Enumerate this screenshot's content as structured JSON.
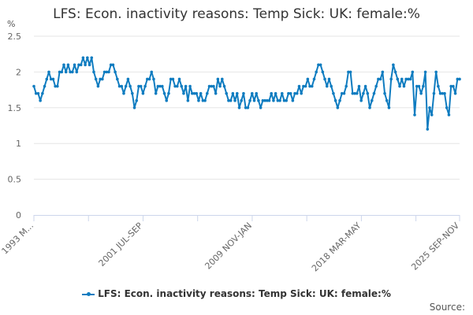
{
  "chart_data": {
    "type": "line",
    "title": "LFS: Econ. inactivity reasons: Temp Sick: UK: female:%",
    "ylabel": "%",
    "xlabel": "",
    "ylim": [
      0,
      2.5
    ],
    "yticks": [
      "0",
      "0.5",
      "1",
      "1.5",
      "2",
      "2.5"
    ],
    "grid": true,
    "legend_placement": "bottom",
    "x_range_months": [
      0,
      390
    ],
    "xticks": [
      {
        "label": "1993 M...",
        "month": 0
      },
      {
        "label": "2001 JUL-SEP",
        "month": 100
      },
      {
        "label": "2009 NOV-JAN",
        "month": 200
      },
      {
        "label": "2018 MAR-MAY",
        "month": 300
      },
      {
        "label": "2025 SEP-NOV",
        "month": 390
      }
    ],
    "series": [
      {
        "name": "LFS: Econ. inactivity reasons: Temp Sick: UK: female:%",
        "color": "#0f7cc0",
        "values": [
          1.8,
          1.7,
          1.7,
          1.6,
          1.7,
          1.8,
          1.9,
          2.0,
          1.9,
          1.9,
          1.8,
          1.8,
          2.0,
          2.0,
          2.1,
          2.0,
          2.1,
          2.0,
          2.0,
          2.1,
          2.0,
          2.1,
          2.1,
          2.2,
          2.1,
          2.2,
          2.1,
          2.2,
          2.0,
          1.9,
          1.8,
          1.9,
          1.9,
          2.0,
          2.0,
          2.0,
          2.1,
          2.1,
          2.0,
          1.9,
          1.8,
          1.8,
          1.7,
          1.8,
          1.9,
          1.8,
          1.7,
          1.5,
          1.6,
          1.8,
          1.8,
          1.7,
          1.8,
          1.9,
          1.9,
          2.0,
          1.9,
          1.7,
          1.8,
          1.8,
          1.8,
          1.7,
          1.6,
          1.7,
          1.9,
          1.9,
          1.8,
          1.8,
          1.9,
          1.8,
          1.7,
          1.8,
          1.6,
          1.8,
          1.7,
          1.7,
          1.7,
          1.6,
          1.7,
          1.6,
          1.6,
          1.7,
          1.8,
          1.8,
          1.8,
          1.7,
          1.9,
          1.8,
          1.9,
          1.8,
          1.7,
          1.6,
          1.6,
          1.7,
          1.6,
          1.7,
          1.5,
          1.6,
          1.7,
          1.5,
          1.5,
          1.6,
          1.7,
          1.6,
          1.7,
          1.6,
          1.5,
          1.6,
          1.6,
          1.6,
          1.6,
          1.7,
          1.6,
          1.7,
          1.6,
          1.6,
          1.7,
          1.6,
          1.6,
          1.7,
          1.7,
          1.6,
          1.7,
          1.7,
          1.8,
          1.7,
          1.8,
          1.8,
          1.9,
          1.8,
          1.8,
          1.9,
          2.0,
          2.1,
          2.1,
          2.0,
          1.9,
          1.8,
          1.9,
          1.8,
          1.7,
          1.6,
          1.5,
          1.6,
          1.7,
          1.7,
          1.8,
          2.0,
          2.0,
          1.7,
          1.7,
          1.7,
          1.8,
          1.6,
          1.7,
          1.8,
          1.7,
          1.5,
          1.6,
          1.7,
          1.8,
          1.9,
          1.9,
          2.0,
          1.7,
          1.6,
          1.5,
          1.9,
          2.1,
          2.0,
          1.9,
          1.8,
          1.9,
          1.8,
          1.9,
          1.9,
          1.9,
          2.0,
          1.4,
          1.8,
          1.8,
          1.7,
          1.8,
          2.0,
          1.2,
          1.5,
          1.4,
          1.7,
          2.0,
          1.8,
          1.7,
          1.7,
          1.7,
          1.5,
          1.4,
          1.8,
          1.8,
          1.7,
          1.9,
          1.9
        ]
      }
    ],
    "source_label": "Source:"
  }
}
